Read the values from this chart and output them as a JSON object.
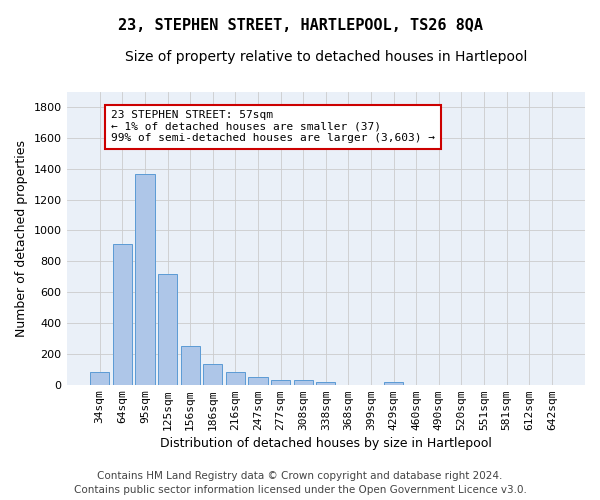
{
  "title": "23, STEPHEN STREET, HARTLEPOOL, TS26 8QA",
  "subtitle": "Size of property relative to detached houses in Hartlepool",
  "xlabel": "Distribution of detached houses by size in Hartlepool",
  "ylabel": "Number of detached properties",
  "categories": [
    "34sqm",
    "64sqm",
    "95sqm",
    "125sqm",
    "156sqm",
    "186sqm",
    "216sqm",
    "247sqm",
    "277sqm",
    "308sqm",
    "338sqm",
    "368sqm",
    "399sqm",
    "429sqm",
    "460sqm",
    "490sqm",
    "520sqm",
    "551sqm",
    "581sqm",
    "612sqm",
    "642sqm"
  ],
  "values": [
    80,
    910,
    1365,
    718,
    248,
    135,
    80,
    48,
    30,
    30,
    18,
    0,
    0,
    20,
    0,
    0,
    0,
    0,
    0,
    0,
    0
  ],
  "bar_color": "#aec6e8",
  "bar_edge_color": "#5b9bd5",
  "annotation_text": "23 STEPHEN STREET: 57sqm\n← 1% of detached houses are smaller (37)\n99% of semi-detached houses are larger (3,603) →",
  "annotation_box_color": "#ffffff",
  "annotation_box_edge_color": "#cc0000",
  "ylim": [
    0,
    1900
  ],
  "yticks": [
    0,
    200,
    400,
    600,
    800,
    1000,
    1200,
    1400,
    1600,
    1800
  ],
  "footer": "Contains HM Land Registry data © Crown copyright and database right 2024.\nContains public sector information licensed under the Open Government Licence v3.0.",
  "bg_color": "#ffffff",
  "plot_bg_color": "#eaf0f8",
  "grid_color": "#cccccc",
  "title_fontsize": 11,
  "subtitle_fontsize": 10,
  "axis_label_fontsize": 9,
  "tick_fontsize": 8,
  "annotation_fontsize": 8,
  "footer_fontsize": 7.5
}
